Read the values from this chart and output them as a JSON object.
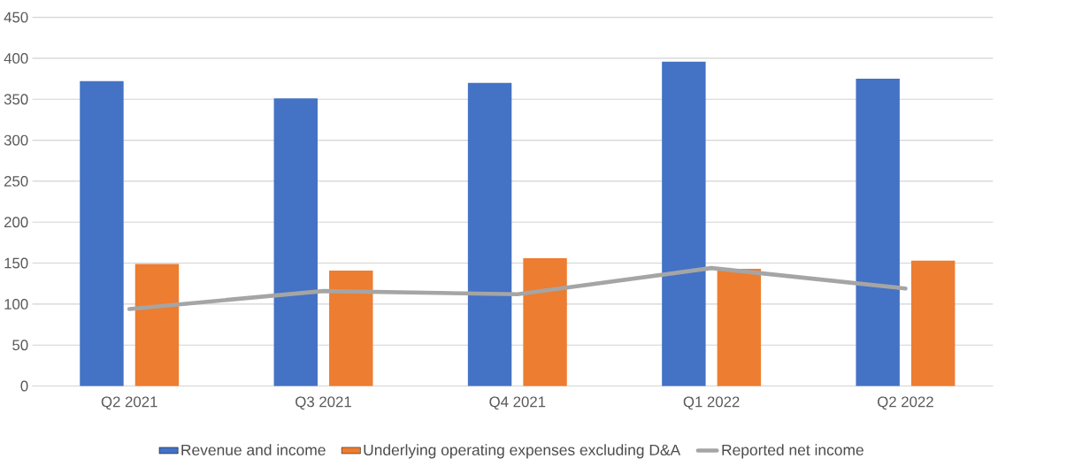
{
  "chart_data": {
    "type": "bar",
    "categories": [
      "Q2 2021",
      "Q3 2021",
      "Q4 2021",
      "Q1 2022",
      "Q2 2022"
    ],
    "series": [
      {
        "name": "Revenue and income",
        "color": "#4472c4",
        "values": [
          372,
          351,
          370,
          396,
          375
        ]
      },
      {
        "name": "Underlying operating expenses excluding D&A",
        "color": "#ed7d31",
        "values": [
          149,
          141,
          156,
          143,
          153
        ]
      },
      {
        "name": "Reported net income",
        "color": "#a5a5a5",
        "type": "line",
        "values": [
          94,
          116,
          112,
          144,
          119
        ]
      }
    ],
    "ylim": [
      0,
      450
    ],
    "yticks": [
      0,
      50,
      100,
      150,
      200,
      250,
      300,
      350,
      400,
      450
    ],
    "grid": "y",
    "legend": "bottom"
  }
}
